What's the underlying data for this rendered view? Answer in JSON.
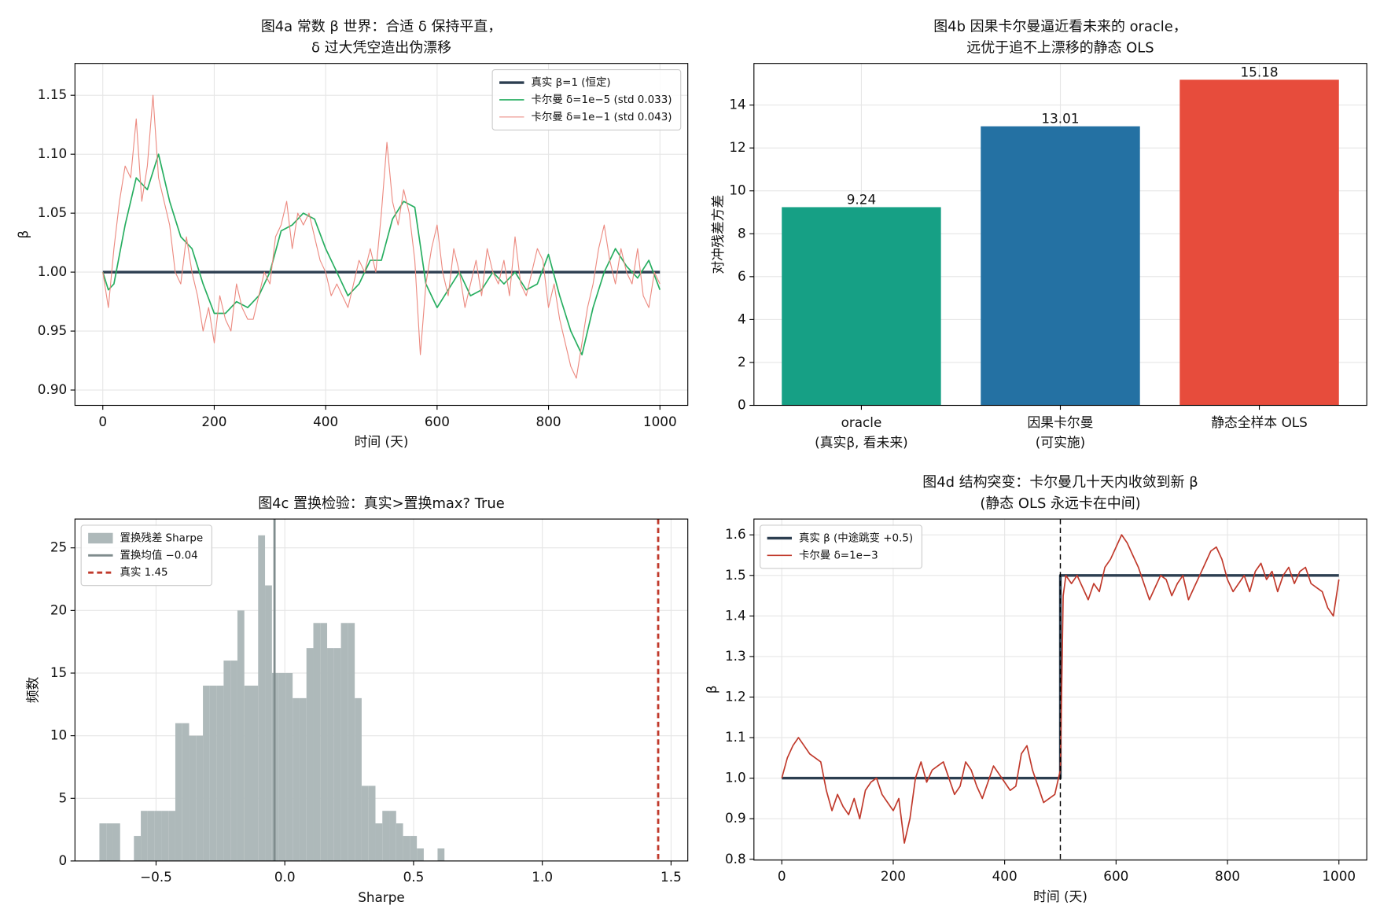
{
  "chart_data": [
    {
      "type": "line",
      "title": [
        "图4a  常数 β 世界：合适 δ 保持平直，",
        "δ 过大凭空造出伪漂移"
      ],
      "xlabel": "时间 (天)",
      "ylabel": "β",
      "xlim": [
        -50,
        1050
      ],
      "ylim": [
        0.887,
        1.177
      ],
      "xticks": [
        0,
        200,
        400,
        600,
        800,
        1000
      ],
      "yticks": [
        {
          "value": 0.9,
          "label": "0.90"
        },
        {
          "value": 0.95,
          "label": "0.95"
        },
        {
          "value": 1.0,
          "label": "1.00"
        },
        {
          "value": 1.05,
          "label": "1.05"
        },
        {
          "value": 1.1,
          "label": "1.10"
        },
        {
          "value": 1.15,
          "label": "1.15"
        }
      ],
      "grid": true,
      "legend": "upper right",
      "series": [
        {
          "name": "真实 β=1 (恒定)",
          "color": "#2c3e50",
          "width": 3,
          "x": [
            0,
            1000
          ],
          "values": [
            1.0,
            1.0
          ]
        },
        {
          "name": "卡尔曼 δ=1e−5 (std 0.033)",
          "color": "#27ae60",
          "width": 1.5,
          "x": [
            0,
            10,
            20,
            40,
            60,
            80,
            100,
            120,
            140,
            160,
            180,
            200,
            220,
            240,
            260,
            280,
            300,
            320,
            340,
            360,
            380,
            400,
            420,
            440,
            460,
            480,
            500,
            520,
            540,
            560,
            580,
            600,
            620,
            640,
            660,
            680,
            700,
            720,
            740,
            760,
            780,
            800,
            820,
            840,
            860,
            880,
            900,
            920,
            940,
            960,
            980,
            1000
          ],
          "values": [
            1.0,
            0.985,
            0.99,
            1.04,
            1.08,
            1.07,
            1.1,
            1.06,
            1.03,
            1.02,
            0.99,
            0.965,
            0.965,
            0.975,
            0.97,
            0.98,
            1.0,
            1.035,
            1.04,
            1.05,
            1.045,
            1.02,
            1.0,
            0.98,
            0.99,
            1.01,
            1.01,
            1.045,
            1.06,
            1.055,
            0.99,
            0.97,
            0.985,
            1.0,
            0.98,
            0.985,
            1.0,
            0.99,
            1.0,
            0.985,
            0.99,
            1.015,
            0.98,
            0.95,
            0.93,
            0.97,
            1.0,
            1.02,
            1.005,
            0.995,
            1.01,
            0.985
          ]
        },
        {
          "name": "卡尔曼 δ=1e−1 (std 0.043)",
          "color": "#ec8a80",
          "width": 1,
          "x": [
            0,
            10,
            20,
            30,
            40,
            50,
            60,
            70,
            80,
            90,
            100,
            110,
            120,
            130,
            140,
            150,
            160,
            170,
            180,
            190,
            200,
            210,
            220,
            230,
            240,
            250,
            260,
            270,
            280,
            290,
            300,
            310,
            320,
            330,
            340,
            350,
            360,
            370,
            380,
            390,
            400,
            410,
            420,
            430,
            440,
            450,
            460,
            470,
            480,
            490,
            500,
            510,
            520,
            530,
            540,
            550,
            560,
            570,
            580,
            590,
            600,
            610,
            620,
            630,
            640,
            650,
            660,
            670,
            680,
            690,
            700,
            710,
            720,
            730,
            740,
            750,
            760,
            770,
            780,
            790,
            800,
            810,
            820,
            830,
            840,
            850,
            860,
            870,
            880,
            890,
            900,
            910,
            920,
            930,
            940,
            950,
            960,
            970,
            980,
            990,
            1000
          ],
          "values": [
            1.0,
            0.97,
            1.02,
            1.06,
            1.09,
            1.08,
            1.13,
            1.06,
            1.09,
            1.15,
            1.08,
            1.06,
            1.04,
            1.0,
            0.99,
            1.03,
            1.0,
            0.98,
            0.95,
            0.97,
            0.94,
            0.98,
            0.96,
            0.95,
            0.99,
            0.97,
            0.96,
            0.96,
            0.98,
            1.0,
            0.99,
            1.03,
            1.04,
            1.06,
            1.02,
            1.05,
            1.04,
            1.05,
            1.03,
            1.01,
            1.0,
            0.98,
            0.99,
            0.98,
            0.97,
            0.99,
            1.01,
            1.0,
            1.02,
            1.0,
            1.05,
            1.11,
            1.06,
            1.04,
            1.07,
            1.05,
            1.01,
            0.93,
            0.99,
            1.02,
            1.04,
            1.0,
            0.98,
            1.02,
            1.0,
            0.97,
            0.99,
            1.01,
            0.98,
            1.02,
            1.0,
            0.99,
            1.01,
            0.98,
            1.03,
            0.99,
            0.98,
            1.0,
            1.02,
            1.01,
            0.97,
            0.99,
            0.96,
            0.94,
            0.92,
            0.91,
            0.94,
            0.97,
            0.99,
            1.02,
            1.04,
            1.01,
            0.99,
            1.02,
            1.0,
            0.99,
            1.02,
            0.98,
            0.97,
            1.0,
            0.99
          ]
        }
      ]
    },
    {
      "type": "bar",
      "title": [
        "图4b  因果卡尔曼逼近看未来的 oracle，",
        "远优于追不上漂移的静态 OLS"
      ],
      "ylabel": "对冲残差方差",
      "categories": [
        [
          "oracle",
          "(真实β, 看未来)"
        ],
        [
          "因果卡尔曼",
          "(可实施)"
        ],
        [
          "静态全样本 OLS"
        ]
      ],
      "values": [
        9.24,
        13.01,
        15.18
      ],
      "colors": [
        "#16a085",
        "#2471a3",
        "#e74c3c"
      ],
      "ylim": [
        0,
        15.94
      ],
      "yticks": [
        0,
        2,
        4,
        6,
        8,
        10,
        12,
        14
      ],
      "grid": true
    },
    {
      "type": "histogram",
      "title": [
        "图4c  置换检验：真实>置换max? True"
      ],
      "xlabel": "Sharpe",
      "ylabel": "频数",
      "xlim": [
        -0.815,
        1.565
      ],
      "ylim": [
        0,
        27.3
      ],
      "xticks": [
        {
          "value": -0.5,
          "label": "−0.5"
        },
        {
          "value": 0,
          "label": "0.0"
        },
        {
          "value": 0.5,
          "label": "0.5"
        },
        {
          "value": 1.0,
          "label": "1.0"
        },
        {
          "value": 1.5,
          "label": "1.5"
        }
      ],
      "yticks": [
        0,
        5,
        10,
        15,
        20,
        25
      ],
      "grid": true,
      "legend": "upper left",
      "name": "置换残差 Sharpe",
      "color": "#aeb9ba",
      "bins": [
        -0.72,
        -0.6932,
        -0.6664,
        -0.6396,
        -0.6128,
        -0.586,
        -0.5592,
        -0.5324,
        -0.5056,
        -0.4788,
        -0.452,
        -0.4252,
        -0.3984,
        -0.3716,
        -0.3448,
        -0.318,
        -0.2912,
        -0.2644,
        -0.2376,
        -0.2108,
        -0.184,
        -0.1572,
        -0.1304,
        -0.1036,
        -0.0768,
        -0.05,
        -0.0232,
        0.0036,
        0.0304,
        0.0572,
        0.084,
        0.1108,
        0.1376,
        0.1644,
        0.1912,
        0.218,
        0.2448,
        0.2716,
        0.2984,
        0.3252,
        0.352,
        0.3788,
        0.4056,
        0.4324,
        0.4592,
        0.486,
        0.5128,
        0.5396,
        0.5664,
        0.5932,
        0.62
      ],
      "values": [
        3,
        3,
        3,
        0,
        0,
        2,
        4,
        4,
        4,
        4,
        4,
        11,
        11,
        10,
        10,
        14,
        14,
        14,
        16,
        16,
        20,
        14,
        14,
        26,
        22,
        15,
        15,
        15,
        13,
        13,
        17,
        19,
        19,
        17,
        17,
        19,
        19,
        13,
        6,
        6,
        3,
        4,
        4,
        3,
        2,
        2,
        1,
        0,
        0,
        1
      ],
      "vlines": [
        {
          "name": "置换均值 −0.04",
          "x": -0.04,
          "color": "#7f8c8d",
          "style": "solid"
        },
        {
          "name": "真实 1.45",
          "x": 1.45,
          "color": "#c0392b",
          "style": "dashed"
        }
      ]
    },
    {
      "type": "line",
      "title": [
        "图4d  结构突变：卡尔曼几十天内收敛到新 β",
        "(静态 OLS 永远卡在中间)"
      ],
      "xlabel": "时间 (天)",
      "ylabel": "β",
      "xlim": [
        -50,
        1050
      ],
      "ylim": [
        0.798,
        1.639
      ],
      "xticks": [
        0,
        200,
        400,
        600,
        800,
        1000
      ],
      "yticks": [
        {
          "value": 0.8,
          "label": "0.8"
        },
        {
          "value": 0.9,
          "label": "0.9"
        },
        {
          "value": 1.0,
          "label": "1.0"
        },
        {
          "value": 1.1,
          "label": "1.1"
        },
        {
          "value": 1.2,
          "label": "1.2"
        },
        {
          "value": 1.3,
          "label": "1.3"
        },
        {
          "value": 1.4,
          "label": "1.4"
        },
        {
          "value": 1.5,
          "label": "1.5"
        },
        {
          "value": 1.6,
          "label": "1.6"
        }
      ],
      "grid": true,
      "legend": "upper left",
      "vlines": [
        {
          "x": 500,
          "color": "#000000",
          "style": "dashed"
        }
      ],
      "series": [
        {
          "name": "真实 β (中途跳变 +0.5)",
          "color": "#2c3e50",
          "width": 3,
          "x": [
            0,
            500,
            500,
            1000
          ],
          "values": [
            1.0,
            1.0,
            1.5,
            1.5
          ]
        },
        {
          "name": "卡尔曼 δ=1e−3",
          "color": "#c0392b",
          "width": 1.5,
          "x": [
            0,
            10,
            20,
            30,
            40,
            50,
            60,
            70,
            80,
            90,
            100,
            110,
            120,
            130,
            140,
            150,
            160,
            170,
            180,
            190,
            200,
            210,
            220,
            230,
            240,
            250,
            260,
            270,
            280,
            290,
            300,
            310,
            320,
            330,
            340,
            350,
            360,
            370,
            380,
            390,
            400,
            410,
            420,
            430,
            440,
            450,
            460,
            470,
            480,
            490,
            500,
            505,
            510,
            520,
            530,
            540,
            550,
            560,
            570,
            580,
            590,
            600,
            610,
            620,
            630,
            640,
            650,
            660,
            670,
            680,
            690,
            700,
            710,
            720,
            730,
            740,
            750,
            760,
            770,
            780,
            790,
            800,
            810,
            820,
            830,
            840,
            850,
            860,
            870,
            880,
            890,
            900,
            910,
            920,
            930,
            940,
            950,
            960,
            970,
            980,
            990,
            1000
          ],
          "values": [
            1.0,
            1.05,
            1.08,
            1.1,
            1.08,
            1.06,
            1.05,
            1.04,
            0.97,
            0.92,
            0.96,
            0.93,
            0.91,
            0.95,
            0.9,
            0.97,
            0.99,
            1.0,
            0.96,
            0.94,
            0.92,
            0.95,
            0.84,
            0.9,
            1.0,
            1.04,
            0.99,
            1.02,
            1.03,
            1.04,
            1.0,
            0.96,
            0.98,
            1.04,
            1.02,
            0.98,
            0.95,
            0.99,
            1.03,
            1.01,
            0.99,
            0.97,
            0.98,
            1.06,
            1.08,
            1.02,
            0.98,
            0.94,
            0.95,
            0.96,
            1.02,
            1.45,
            1.5,
            1.48,
            1.5,
            1.47,
            1.44,
            1.48,
            1.46,
            1.52,
            1.54,
            1.57,
            1.6,
            1.58,
            1.55,
            1.52,
            1.48,
            1.44,
            1.47,
            1.5,
            1.49,
            1.45,
            1.48,
            1.5,
            1.44,
            1.47,
            1.5,
            1.53,
            1.56,
            1.57,
            1.54,
            1.49,
            1.46,
            1.48,
            1.5,
            1.46,
            1.51,
            1.53,
            1.49,
            1.51,
            1.46,
            1.5,
            1.52,
            1.48,
            1.51,
            1.52,
            1.48,
            1.47,
            1.46,
            1.42,
            1.4,
            1.49
          ]
        }
      ]
    }
  ]
}
